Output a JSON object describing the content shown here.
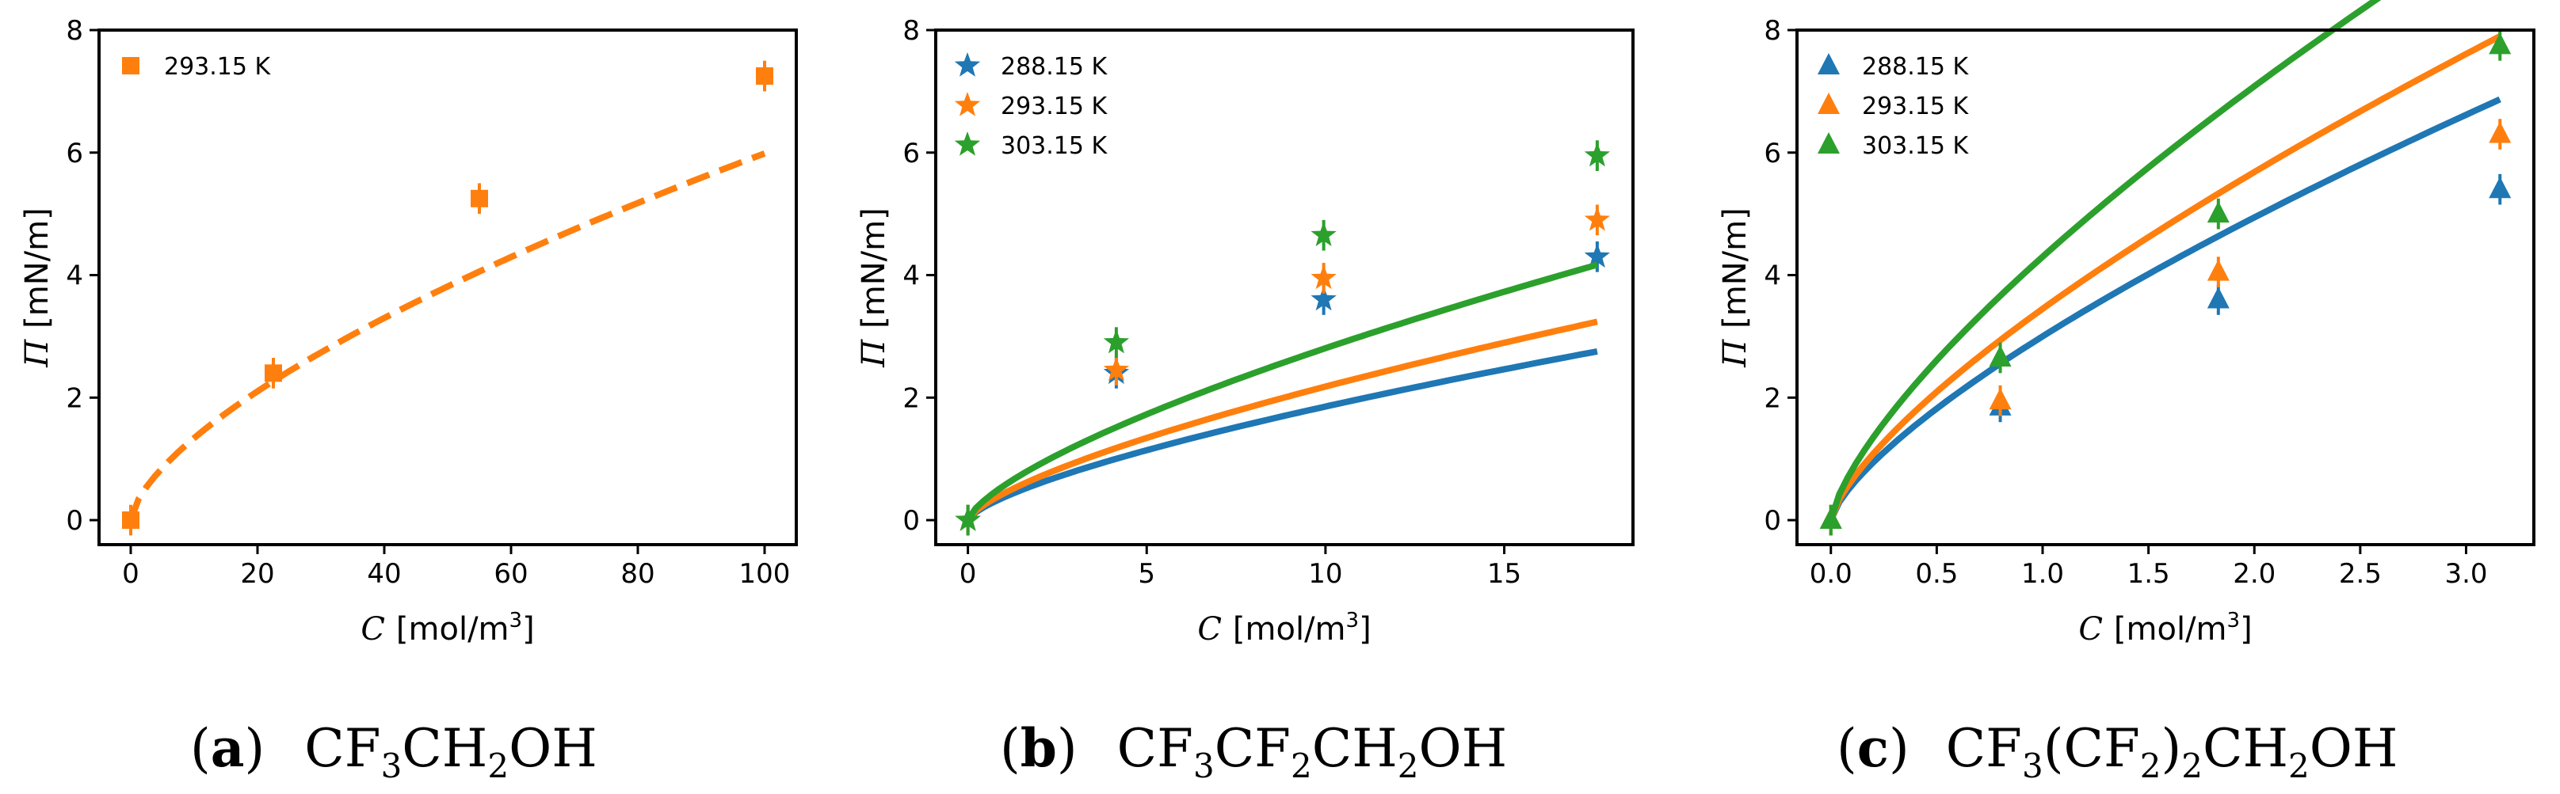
{
  "colors": {
    "blue": "#1f77b4",
    "orange": "#ff7f0e",
    "green": "#2ca02c"
  },
  "chart_data": [
    {
      "type": "scatter",
      "panel_letter": "a",
      "caption": {
        "paren_open": "(",
        "letter": "a",
        "paren_close": ")",
        "p1": "CF",
        "s1": "3",
        "p2": "CH",
        "s2": "2",
        "p3": "OH"
      },
      "xlabel": {
        "symbol": "C",
        "unit": "[mol/m",
        "sup": "3",
        "close": "]"
      },
      "ylabel": {
        "symbol": "Π",
        "unit": "[mN/m]"
      },
      "xlim": [
        -5,
        105
      ],
      "ylim": [
        -0.4,
        8.0
      ],
      "xticks": [
        0,
        20,
        40,
        60,
        80,
        100
      ],
      "xtick_labels": [
        "0",
        "20",
        "40",
        "60",
        "80",
        "100"
      ],
      "yticks": [
        0,
        2,
        4,
        6,
        8
      ],
      "ytick_labels": [
        "0",
        "2",
        "4",
        "6",
        "8"
      ],
      "legend_position": "top-left",
      "series": [
        {
          "name": "293.15 K",
          "color": "orange",
          "marker": "square",
          "fit_style": "dashed",
          "x": [
            0,
            22.5,
            55,
            100
          ],
          "y": [
            0.0,
            2.4,
            5.25,
            7.25
          ],
          "yerr": [
            0.25,
            0.25,
            0.25,
            0.25
          ],
          "fit": {
            "a": 0.1,
            "b": 0.3,
            "n": 0.65,
            "x_end": 100
          }
        }
      ]
    },
    {
      "type": "scatter",
      "panel_letter": "b",
      "caption": {
        "paren_open": "(",
        "letter": "b",
        "paren_close": ")",
        "p1": "CF",
        "s1": "3",
        "p2": "CF",
        "s2": "2",
        "p3": "CH",
        "s3": "2",
        "p4": "OH"
      },
      "xlabel": {
        "symbol": "C",
        "unit": "[mol/m",
        "sup": "3",
        "close": "]"
      },
      "ylabel": {
        "symbol": "Π",
        "unit": "[mN/m]"
      },
      "xlim": [
        -0.9,
        18.6
      ],
      "ylim": [
        -0.4,
        8.0
      ],
      "xticks": [
        0,
        5,
        10,
        15
      ],
      "xtick_labels": [
        "0",
        "5",
        "10",
        "15"
      ],
      "yticks": [
        0,
        2,
        4,
        6,
        8
      ],
      "ytick_labels": [
        "0",
        "2",
        "4",
        "6",
        "8"
      ],
      "legend_position": "top-left",
      "series": [
        {
          "name": "288.15 K",
          "color": "blue",
          "marker": "star",
          "fit_style": "solid",
          "x": [
            0,
            4.15,
            9.95,
            17.6
          ],
          "y": [
            0.0,
            2.4,
            3.6,
            4.3
          ],
          "yerr": [
            0.25,
            0.25,
            0.25,
            0.25
          ],
          "fit": {
            "a": 0.6,
            "b": 0.37,
            "n": 0.7,
            "x_end": 17.6
          }
        },
        {
          "name": "293.15 K",
          "color": "orange",
          "marker": "star",
          "fit_style": "solid",
          "x": [
            0,
            4.15,
            9.95,
            17.6
          ],
          "y": [
            0.0,
            2.45,
            3.95,
            4.9
          ],
          "yerr": [
            0.25,
            0.25,
            0.25,
            0.25
          ],
          "fit": {
            "a": 0.6,
            "b": 0.435,
            "n": 0.7,
            "x_end": 17.6
          }
        },
        {
          "name": "303.15 K",
          "color": "green",
          "marker": "star",
          "fit_style": "solid",
          "x": [
            0,
            4.15,
            9.95,
            17.6
          ],
          "y": [
            0.0,
            2.9,
            4.65,
            5.95
          ],
          "yerr": [
            0.25,
            0.25,
            0.25,
            0.25
          ],
          "fit": {
            "a": 0.6,
            "b": 0.56,
            "n": 0.7,
            "x_end": 17.6
          }
        }
      ]
    },
    {
      "type": "scatter",
      "panel_letter": "c",
      "caption": {
        "paren_open": "(",
        "letter": "c",
        "paren_close": ")",
        "p1": "CF",
        "s1": "3",
        "p2": "(CF",
        "s2": "2",
        "p3": ")",
        "s3": "2",
        "p4": "CH",
        "s4": "2",
        "p5": "OH"
      },
      "xlabel": {
        "symbol": "C",
        "unit": "[mol/m",
        "sup": "3",
        "close": "]"
      },
      "ylabel": {
        "symbol": "Π",
        "unit": "[mN/m]"
      },
      "xlim": [
        -0.16,
        3.32
      ],
      "ylim": [
        -0.4,
        8.0
      ],
      "xticks": [
        0.0,
        0.5,
        1.0,
        1.5,
        2.0,
        2.5,
        3.0
      ],
      "xtick_labels": [
        "0.0",
        "0.5",
        "1.0",
        "1.5",
        "2.0",
        "2.5",
        "3.0"
      ],
      "yticks": [
        0,
        2,
        4,
        6,
        8
      ],
      "ytick_labels": [
        "0",
        "2",
        "4",
        "6",
        "8"
      ],
      "legend_position": "top-left",
      "series": [
        {
          "name": "288.15 K",
          "color": "blue",
          "marker": "triangle",
          "fit_style": "solid",
          "x": [
            0,
            0.8,
            1.83,
            3.16
          ],
          "y": [
            0.0,
            1.85,
            3.6,
            5.4
          ],
          "yerr": [
            0.25,
            0.25,
            0.25,
            0.25
          ],
          "fit": {
            "a": 0.6,
            "b": 3.0,
            "n": 0.72,
            "x_end": 3.16
          }
        },
        {
          "name": "293.15 K",
          "color": "orange",
          "marker": "triangle",
          "fit_style": "solid",
          "x": [
            0,
            0.8,
            1.83,
            3.16
          ],
          "y": [
            0.0,
            1.95,
            4.05,
            6.3
          ],
          "yerr": [
            0.25,
            0.25,
            0.25,
            0.25
          ],
          "fit": {
            "a": 0.6,
            "b": 3.45,
            "n": 0.72,
            "x_end": 3.16
          }
        },
        {
          "name": "303.15 K",
          "color": "green",
          "marker": "triangle",
          "fit_style": "solid",
          "x": [
            0,
            0.8,
            1.83,
            3.16
          ],
          "y": [
            0.0,
            2.65,
            5.0,
            7.75
          ],
          "yerr": [
            0.25,
            0.25,
            0.25,
            0.25
          ],
          "fit": {
            "a": 0.6,
            "b": 4.3,
            "n": 0.72,
            "x_end": 3.16
          }
        }
      ]
    }
  ]
}
